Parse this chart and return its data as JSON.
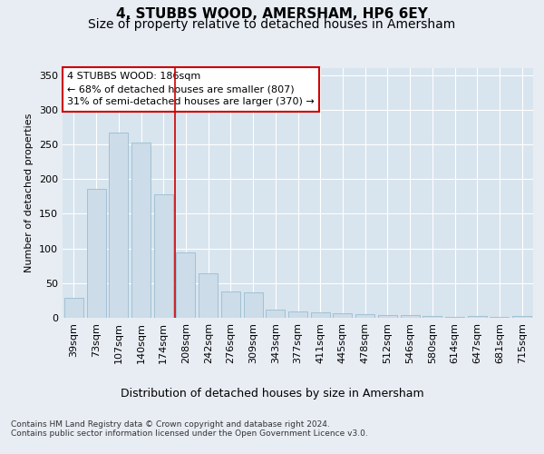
{
  "title": "4, STUBBS WOOD, AMERSHAM, HP6 6EY",
  "subtitle": "Size of property relative to detached houses in Amersham",
  "xlabel": "Distribution of detached houses by size in Amersham",
  "ylabel": "Number of detached properties",
  "categories": [
    "39sqm",
    "73sqm",
    "107sqm",
    "140sqm",
    "174sqm",
    "208sqm",
    "242sqm",
    "276sqm",
    "309sqm",
    "343sqm",
    "377sqm",
    "411sqm",
    "445sqm",
    "478sqm",
    "512sqm",
    "546sqm",
    "580sqm",
    "614sqm",
    "647sqm",
    "681sqm",
    "715sqm"
  ],
  "values": [
    29,
    186,
    267,
    252,
    178,
    94,
    64,
    38,
    37,
    12,
    9,
    8,
    6,
    5,
    4,
    4,
    3,
    1,
    3,
    1,
    2
  ],
  "bar_color": "#ccdce8",
  "bar_edge_color": "#9bbdd0",
  "background_color": "#e8edf4",
  "plot_bg_color": "#d8e4ee",
  "grid_color": "#ffffff",
  "vline_x_index": 4,
  "vline_color": "#cc0000",
  "annotation_text": "4 STUBBS WOOD: 186sqm\n← 68% of detached houses are smaller (807)\n31% of semi-detached houses are larger (370) →",
  "annotation_box_facecolor": "#ffffff",
  "annotation_box_edgecolor": "#cc0000",
  "ylim": [
    0,
    360
  ],
  "yticks": [
    0,
    50,
    100,
    150,
    200,
    250,
    300,
    350
  ],
  "footer_text": "Contains HM Land Registry data © Crown copyright and database right 2024.\nContains public sector information licensed under the Open Government Licence v3.0.",
  "title_fontsize": 11,
  "subtitle_fontsize": 10,
  "xlabel_fontsize": 9,
  "ylabel_fontsize": 8,
  "tick_fontsize": 8,
  "annotation_fontsize": 8,
  "footer_fontsize": 6.5
}
